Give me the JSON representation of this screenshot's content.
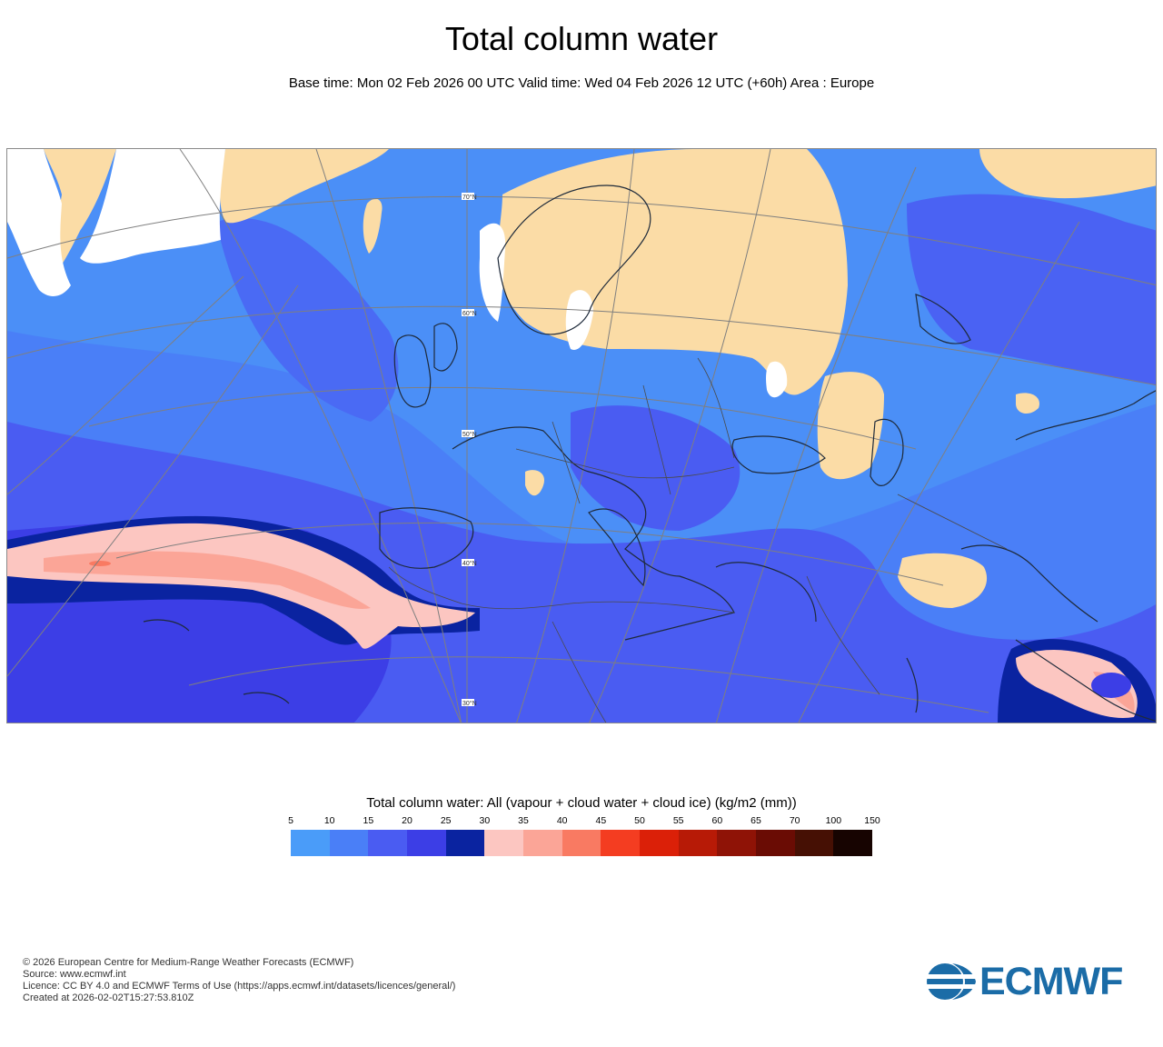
{
  "header": {
    "title": "Total column water",
    "subtitle": "Base time: Mon 02 Feb 2026 00 UTC Valid time: Wed 04 Feb 2026 12 UTC (+60h) Area : Europe"
  },
  "map": {
    "area": "Europe",
    "graticule_labels": [
      "70°N",
      "60°N",
      "50°N",
      "40°N",
      "30°N"
    ]
  },
  "legend": {
    "title": "Total column water: All (vapour + cloud water + cloud ice) (kg/m2 (mm))",
    "ticks": [
      "5",
      "10",
      "15",
      "20",
      "25",
      "30",
      "35",
      "40",
      "45",
      "50",
      "55",
      "60",
      "65",
      "70",
      "100",
      "150"
    ],
    "colors": [
      "#4a9cf9",
      "#4a7ff7",
      "#4a5cf2",
      "#3c3ee6",
      "#0a23a0",
      "#fcc6c1",
      "#fba597",
      "#f97a62",
      "#f43d21",
      "#db2008",
      "#b71a06",
      "#8f1306",
      "#6a0c04",
      "#461004",
      "#170401"
    ]
  },
  "footer": {
    "line1": "© 2026 European Centre for Medium-Range Weather Forecasts (ECMWF)",
    "line2": "Source: www.ecmwf.int",
    "line3": "Licence: CC BY 4.0 and ECMWF Terms of Use (https://apps.ecmwf.int/datasets/licences/general/)",
    "line4": "Created at 2026-02-02T15:27:53.810Z"
  },
  "logo": {
    "text": "ECMWF",
    "icon": "ecmwf-logo-icon"
  }
}
